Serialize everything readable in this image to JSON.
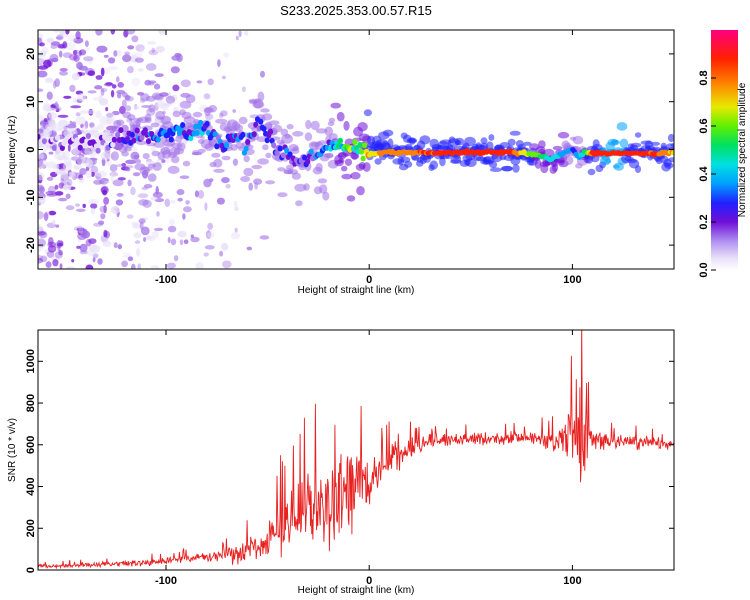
{
  "title": "S233.2025.353.00.57.R15",
  "colors": {
    "snr_line": "#e82020",
    "frame": "#000000",
    "colormap": [
      "#e8e0f8",
      "#a070e8",
      "#7010d8",
      "#2020ff",
      "#00a0ff",
      "#00e0e0",
      "#00e060",
      "#60f000",
      "#e8e800",
      "#ff8000",
      "#ff2000",
      "#ff0080"
    ]
  },
  "chart_data": [
    {
      "type": "heatmap",
      "name": "spectrogram",
      "xlabel": "Height of straight line (km)",
      "ylabel": "Frequency (Hz)",
      "xlim": [
        -163,
        150
      ],
      "ylim": [
        -25,
        25
      ],
      "x_ticks": [
        -100,
        0,
        100
      ],
      "x_tick_labels": [
        "-100",
        "0",
        "100"
      ],
      "y_ticks": [
        20,
        10,
        0,
        -10,
        -20
      ],
      "y_tick_labels": [
        "20",
        "10",
        "0",
        "-10",
        "-20"
      ],
      "colorbar": {
        "label": "Normalized spectral amplitude",
        "range": [
          0,
          1
        ],
        "ticks": [
          0.0,
          0.2,
          0.4,
          0.6,
          0.8
        ],
        "tick_labels": [
          "0.0",
          "0.2",
          "0.4",
          "0.6",
          "0.8"
        ]
      },
      "ridge": {
        "x": [
          -163,
          -145,
          -130,
          -120,
          -110,
          -100,
          -90,
          -85,
          -80,
          -75,
          -70,
          -65,
          -60,
          -55,
          -50,
          -45,
          -40,
          -35,
          -30,
          -25,
          -20,
          -15,
          -10,
          -5,
          0,
          10,
          20,
          30,
          40,
          50,
          60,
          70,
          80,
          90,
          95,
          100,
          103,
          106,
          110,
          120,
          130,
          140,
          150
        ],
        "y": [
          2.2,
          1.8,
          1.5,
          2.5,
          3.0,
          2.8,
          3.2,
          4.0,
          5.0,
          1.5,
          0.5,
          3.5,
          1.0,
          6.0,
          3.0,
          0.0,
          -1.0,
          -3.0,
          -2.0,
          -1.0,
          0.0,
          0.8,
          0.5,
          0.2,
          -1.0,
          -0.5,
          -0.8,
          -0.7,
          -0.6,
          -0.6,
          -0.6,
          -0.6,
          -1.0,
          -2.0,
          -1.0,
          0.0,
          -1.5,
          -0.5,
          -0.8,
          -0.8,
          -0.8,
          -0.8,
          -0.8
        ],
        "amplitude": [
          0.05,
          0.08,
          0.1,
          0.18,
          0.25,
          0.3,
          0.28,
          0.32,
          0.3,
          0.22,
          0.3,
          0.26,
          0.25,
          0.22,
          0.25,
          0.22,
          0.2,
          0.18,
          0.2,
          0.25,
          0.32,
          0.45,
          0.6,
          0.5,
          0.72,
          0.82,
          0.85,
          0.88,
          0.9,
          0.9,
          0.88,
          0.9,
          0.65,
          0.45,
          0.4,
          0.3,
          0.32,
          0.5,
          0.9,
          0.92,
          0.9,
          0.88,
          0.75
        ]
      }
    },
    {
      "type": "line",
      "name": "snr",
      "xlabel": "Height of straight line (km)",
      "ylabel": "SNR (10 * v/v)",
      "xlim": [
        -163,
        150
      ],
      "ylim": [
        0,
        1150
      ],
      "x_ticks": [
        -100,
        0,
        100
      ],
      "x_tick_labels": [
        "-100",
        "0",
        "100"
      ],
      "y_ticks": [
        0,
        200,
        400,
        600,
        800,
        1000
      ],
      "y_tick_labels": [
        "0",
        "200",
        "400",
        "600",
        "800",
        "1000"
      ],
      "envelope": {
        "x": [
          -163,
          -140,
          -120,
          -105,
          -100,
          -90,
          -80,
          -70,
          -60,
          -50,
          -45,
          -40,
          -35,
          -30,
          -25,
          -20,
          -10,
          0,
          10,
          20,
          30,
          40,
          60,
          80,
          90,
          95,
          100,
          103,
          105,
          108,
          110,
          120,
          140,
          150
        ],
        "mean": [
          18,
          22,
          30,
          40,
          45,
          55,
          60,
          70,
          90,
          130,
          180,
          230,
          260,
          280,
          300,
          320,
          360,
          430,
          520,
          580,
          620,
          625,
          630,
          630,
          615,
          610,
          650,
          600,
          580,
          620,
          630,
          615,
          610,
          595
        ],
        "spread": [
          10,
          14,
          18,
          20,
          22,
          24,
          30,
          45,
          70,
          110,
          150,
          200,
          230,
          220,
          250,
          270,
          250,
          140,
          90,
          60,
          45,
          40,
          40,
          45,
          60,
          90,
          280,
          350,
          300,
          200,
          80,
          40,
          40,
          30
        ]
      }
    }
  ]
}
